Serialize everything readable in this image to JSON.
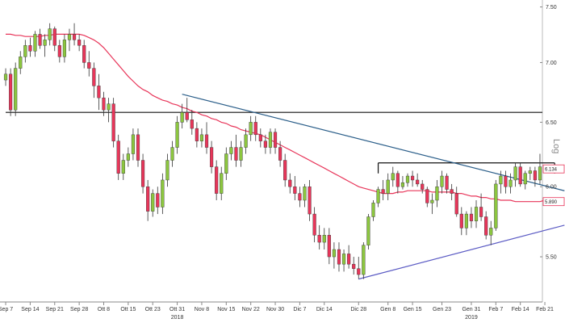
{
  "chart_data": {
    "type": "candlestick",
    "scale": "log",
    "scale_label": "Log",
    "y_ticks": [
      "7.50",
      "7.00",
      "6.50",
      "6.00",
      "5.50"
    ],
    "y_tick_values": [
      7.5,
      7.0,
      6.5,
      6.0,
      5.5
    ],
    "ylim": [
      5.2,
      7.55
    ],
    "x_ticks": [
      "Sep 7",
      "Sep 14",
      "Sep 21",
      "Sep 28",
      "Ott 8",
      "Ott 15",
      "Ott 23",
      "Ott 31",
      "Nov 8",
      "Nov 15",
      "Nov 22",
      "Nov 30",
      "Dic 7",
      "Dic 14",
      "Dic 28",
      "Gen 8",
      "Gen 15",
      "Gen 23",
      "Gen 31",
      "Feb 7",
      "Feb 14",
      "Feb 21"
    ],
    "x_tick_index": [
      0,
      5,
      10,
      15,
      20,
      25,
      30,
      35,
      40,
      45,
      50,
      55,
      60,
      65,
      72,
      78,
      83,
      89,
      95,
      100,
      105,
      110
    ],
    "years": [
      {
        "label": "2018",
        "index": 35
      },
      {
        "label": "2019",
        "index": 95
      }
    ],
    "price_labels": [
      {
        "text": "6.134",
        "value": 6.134,
        "color": "#e8365a"
      },
      {
        "text": "5.890",
        "value": 5.89,
        "color": "#e8365a"
      }
    ],
    "bull_color": "#8cc63f",
    "bear_color": "#e8365a",
    "ma_color": "#e8365a",
    "candles": [
      [
        6.85,
        6.95,
        6.8,
        6.9
      ],
      [
        6.9,
        6.95,
        6.55,
        6.6
      ],
      [
        6.6,
        7.0,
        6.55,
        6.95
      ],
      [
        6.95,
        7.1,
        6.9,
        7.05
      ],
      [
        7.05,
        7.2,
        7.0,
        7.15
      ],
      [
        7.15,
        7.22,
        7.05,
        7.1
      ],
      [
        7.1,
        7.28,
        7.05,
        7.25
      ],
      [
        7.25,
        7.3,
        7.12,
        7.15
      ],
      [
        7.15,
        7.25,
        7.05,
        7.2
      ],
      [
        7.2,
        7.35,
        7.15,
        7.3
      ],
      [
        7.3,
        7.32,
        7.1,
        7.15
      ],
      [
        7.15,
        7.2,
        7.0,
        7.05
      ],
      [
        7.05,
        7.25,
        7.0,
        7.2
      ],
      [
        7.2,
        7.3,
        7.1,
        7.25
      ],
      [
        7.25,
        7.35,
        7.15,
        7.2
      ],
      [
        7.2,
        7.25,
        7.1,
        7.15
      ],
      [
        7.15,
        7.2,
        6.95,
        7.0
      ],
      [
        7.0,
        7.1,
        6.88,
        6.95
      ],
      [
        6.95,
        7.0,
        6.7,
        6.8
      ],
      [
        6.8,
        6.9,
        6.6,
        6.7
      ],
      [
        6.7,
        6.75,
        6.55,
        6.6
      ],
      [
        6.6,
        6.7,
        6.5,
        6.65
      ],
      [
        6.65,
        6.7,
        6.3,
        6.35
      ],
      [
        6.35,
        6.4,
        6.05,
        6.1
      ],
      [
        6.1,
        6.25,
        6.05,
        6.2
      ],
      [
        6.2,
        6.3,
        6.15,
        6.25
      ],
      [
        6.25,
        6.45,
        6.2,
        6.4
      ],
      [
        6.4,
        6.45,
        6.15,
        6.2
      ],
      [
        6.2,
        6.25,
        5.95,
        6.0
      ],
      [
        6.0,
        6.05,
        5.75,
        5.82
      ],
      [
        5.82,
        5.98,
        5.78,
        5.95
      ],
      [
        5.95,
        6.0,
        5.8,
        5.85
      ],
      [
        5.85,
        6.1,
        5.8,
        6.05
      ],
      [
        6.05,
        6.25,
        6.0,
        6.2
      ],
      [
        6.2,
        6.35,
        6.15,
        6.3
      ],
      [
        6.3,
        6.55,
        6.25,
        6.5
      ],
      [
        6.5,
        6.65,
        6.45,
        6.58
      ],
      [
        6.58,
        6.7,
        6.5,
        6.52
      ],
      [
        6.52,
        6.6,
        6.4,
        6.45
      ],
      [
        6.45,
        6.5,
        6.3,
        6.35
      ],
      [
        6.35,
        6.45,
        6.3,
        6.4
      ],
      [
        6.4,
        6.5,
        6.25,
        6.3
      ],
      [
        6.3,
        6.35,
        6.1,
        6.15
      ],
      [
        6.15,
        6.2,
        5.9,
        5.95
      ],
      [
        5.95,
        6.15,
        5.9,
        6.1
      ],
      [
        6.1,
        6.3,
        6.05,
        6.25
      ],
      [
        6.25,
        6.35,
        6.2,
        6.3
      ],
      [
        6.3,
        6.4,
        6.15,
        6.2
      ],
      [
        6.2,
        6.35,
        6.15,
        6.3
      ],
      [
        6.3,
        6.45,
        6.25,
        6.4
      ],
      [
        6.4,
        6.55,
        6.35,
        6.5
      ],
      [
        6.5,
        6.55,
        6.35,
        6.4
      ],
      [
        6.4,
        6.45,
        6.3,
        6.35
      ],
      [
        6.35,
        6.4,
        6.25,
        6.3
      ],
      [
        6.3,
        6.45,
        6.25,
        6.42
      ],
      [
        6.42,
        6.45,
        6.25,
        6.3
      ],
      [
        6.3,
        6.35,
        6.15,
        6.2
      ],
      [
        6.2,
        6.25,
        6.0,
        6.05
      ],
      [
        6.05,
        6.1,
        5.95,
        6.0
      ],
      [
        6.0,
        6.08,
        5.9,
        5.95
      ],
      [
        5.95,
        6.0,
        5.85,
        5.9
      ],
      [
        5.9,
        6.02,
        5.85,
        6.0
      ],
      [
        6.0,
        6.05,
        5.75,
        5.8
      ],
      [
        5.8,
        5.85,
        5.6,
        5.65
      ],
      [
        5.65,
        5.72,
        5.55,
        5.6
      ],
      [
        5.6,
        5.7,
        5.55,
        5.65
      ],
      [
        5.65,
        5.7,
        5.45,
        5.5
      ],
      [
        5.5,
        5.6,
        5.42,
        5.55
      ],
      [
        5.55,
        5.6,
        5.4,
        5.45
      ],
      [
        5.45,
        5.55,
        5.4,
        5.52
      ],
      [
        5.52,
        5.58,
        5.42,
        5.45
      ],
      [
        5.45,
        5.5,
        5.38,
        5.42
      ],
      [
        5.42,
        5.5,
        5.35,
        5.38
      ],
      [
        5.38,
        5.6,
        5.35,
        5.58
      ],
      [
        5.58,
        5.8,
        5.55,
        5.78
      ],
      [
        5.78,
        5.9,
        5.75,
        5.88
      ],
      [
        5.88,
        6.0,
        5.85,
        5.98
      ],
      [
        5.98,
        6.05,
        5.9,
        5.95
      ],
      [
        5.95,
        6.1,
        5.9,
        6.05
      ],
      [
        6.05,
        6.15,
        6.0,
        6.1
      ],
      [
        6.1,
        6.12,
        5.95,
        6.0
      ],
      [
        6.0,
        6.08,
        5.98,
        6.03
      ],
      [
        6.03,
        6.1,
        6.0,
        6.08
      ],
      [
        6.08,
        6.12,
        6.0,
        6.05
      ],
      [
        6.05,
        6.1,
        6.0,
        6.02
      ],
      [
        6.02,
        6.05,
        5.95,
        5.98
      ],
      [
        5.98,
        6.0,
        5.85,
        5.88
      ],
      [
        5.88,
        5.95,
        5.8,
        5.9
      ],
      [
        5.9,
        6.05,
        5.85,
        6.0
      ],
      [
        6.0,
        6.12,
        5.95,
        6.08
      ],
      [
        6.08,
        6.1,
        5.95,
        5.98
      ],
      [
        5.98,
        6.02,
        5.9,
        5.95
      ],
      [
        5.95,
        6.0,
        5.78,
        5.8
      ],
      [
        5.8,
        5.85,
        5.65,
        5.7
      ],
      [
        5.7,
        5.82,
        5.65,
        5.8
      ],
      [
        5.8,
        5.85,
        5.7,
        5.75
      ],
      [
        5.75,
        5.9,
        5.7,
        5.85
      ],
      [
        5.85,
        5.95,
        5.75,
        5.78
      ],
      [
        5.78,
        5.82,
        5.62,
        5.65
      ],
      [
        5.65,
        5.75,
        5.58,
        5.7
      ],
      [
        5.7,
        6.05,
        5.68,
        6.02
      ],
      [
        6.02,
        6.12,
        5.95,
        6.08
      ],
      [
        6.08,
        6.12,
        5.95,
        6.0
      ],
      [
        6.0,
        6.1,
        5.95,
        6.05
      ],
      [
        6.05,
        6.18,
        6.0,
        6.15
      ],
      [
        6.15,
        6.18,
        6.0,
        6.02
      ],
      [
        6.02,
        6.12,
        5.98,
        6.1
      ],
      [
        6.1,
        6.15,
        6.05,
        6.12
      ],
      [
        6.12,
        6.15,
        6.0,
        6.05
      ],
      [
        6.05,
        6.25,
        6.02,
        6.15
      ]
    ],
    "moving_average": [
      7.25,
      7.25,
      7.24,
      7.24,
      7.23,
      7.23,
      7.23,
      7.23,
      7.24,
      7.24,
      7.25,
      7.25,
      7.25,
      7.25,
      7.25,
      7.25,
      7.24,
      7.22,
      7.2,
      7.17,
      7.13,
      7.08,
      7.03,
      6.98,
      6.93,
      6.88,
      6.84,
      6.8,
      6.77,
      6.75,
      6.72,
      6.7,
      6.68,
      6.67,
      6.65,
      6.64,
      6.62,
      6.61,
      6.59,
      6.58,
      6.56,
      6.55,
      6.53,
      6.52,
      6.5,
      6.49,
      6.47,
      6.46,
      6.44,
      6.43,
      6.42,
      6.41,
      6.4,
      6.38,
      6.36,
      6.34,
      6.32,
      6.3,
      6.28,
      6.26,
      6.24,
      6.22,
      6.2,
      6.18,
      6.16,
      6.14,
      6.12,
      6.1,
      6.08,
      6.06,
      6.04,
      6.02,
      6.0,
      5.99,
      5.98,
      5.97,
      5.96,
      5.95,
      5.95,
      5.95,
      5.96,
      5.96,
      5.97,
      5.97,
      5.97,
      5.97,
      5.97,
      5.96,
      5.96,
      5.96,
      5.96,
      5.96,
      5.95,
      5.95,
      5.94,
      5.93,
      5.93,
      5.92,
      5.92,
      5.91,
      5.91,
      5.9,
      5.9,
      5.9,
      5.89,
      5.89,
      5.89,
      5.89,
      5.89,
      5.89,
      5.9,
      5.9,
      5.9,
      5.91
    ],
    "horizontal_lines": [
      6.58,
      6.18
    ],
    "trendlines": [
      {
        "from": [
          36,
          6.73
        ],
        "to": [
          114,
          5.97
        ],
        "color": "#2c5f8a"
      },
      {
        "from": [
          72,
          5.35
        ],
        "to": [
          114,
          5.72
        ],
        "color": "#5b5bc4"
      }
    ]
  }
}
